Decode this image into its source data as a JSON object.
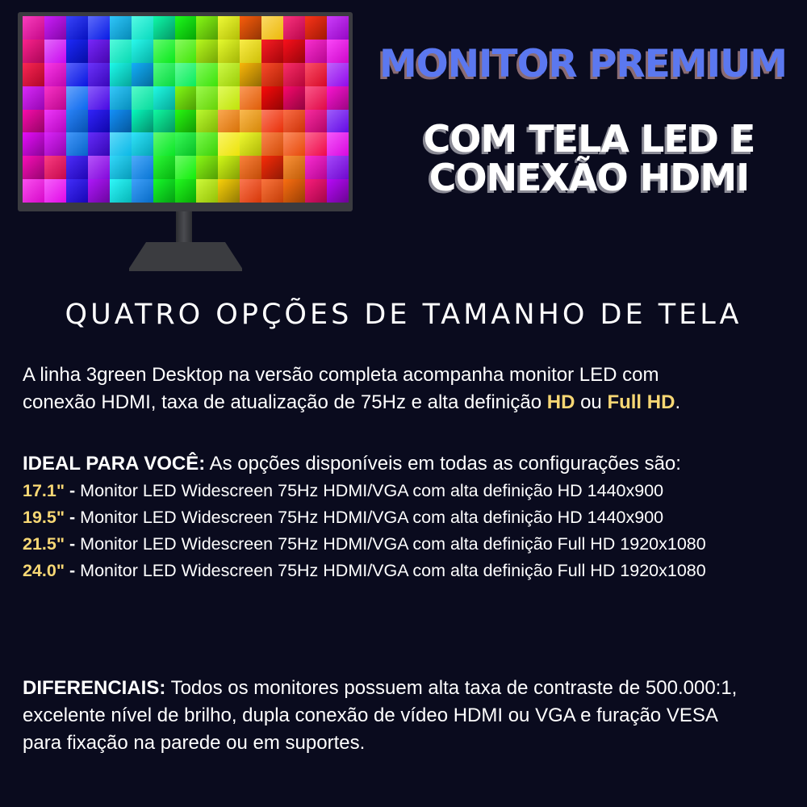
{
  "headline": {
    "line1": "MONITOR PREMIUM",
    "line2a": "COM TELA LED E",
    "line2b": "CONEXÃO HDMI"
  },
  "colors": {
    "background": "#0a0b1e",
    "headline_blue": "#5b78f0",
    "highlight_yellow": "#f7d774"
  },
  "section_title": "QUATRO OPÇÕES DE TAMANHO DE TELA",
  "intro": {
    "line1": "A linha 3green Desktop na versão completa acompanha monitor LED com",
    "line2_pre": "conexão HDMI, taxa de atualização de 75Hz e alta definição ",
    "hd": "HD",
    "or": " ou ",
    "full_hd": "Full HD",
    "end": "."
  },
  "ideal": {
    "label": "IDEAL PARA VOCÊ:",
    "text": " As opções disponíveis em todas as configurações são:"
  },
  "options": [
    {
      "size": "17.1\"",
      "sep": " - ",
      "desc": "Monitor LED Widescreen 75Hz HDMI/VGA com alta definição HD 1440x900"
    },
    {
      "size": "19.5\"",
      "sep": " - ",
      "desc": "Monitor LED Widescreen 75Hz HDMI/VGA com alta definição HD 1440x900"
    },
    {
      "size": "21.5\"",
      "sep": " - ",
      "desc": "Monitor LED Widescreen 75Hz HDMI/VGA com alta definição Full HD 1920x1080"
    },
    {
      "size": "24.0\"",
      "sep": " - ",
      "desc": "Monitor LED Widescreen 75Hz HDMI/VGA com alta definição Full HD 1920x1080"
    }
  ],
  "diferenciais": {
    "label": "DIFERENCIAIS:",
    "line1": " Todos os monitores  possuem alta taxa de contraste de 500.000:1,",
    "line2": "excelente nível  de  brilho, dupla conexão de vídeo HDMI ou VGA e furação VESA",
    "line3": "para fixação na parede ou em suportes."
  }
}
